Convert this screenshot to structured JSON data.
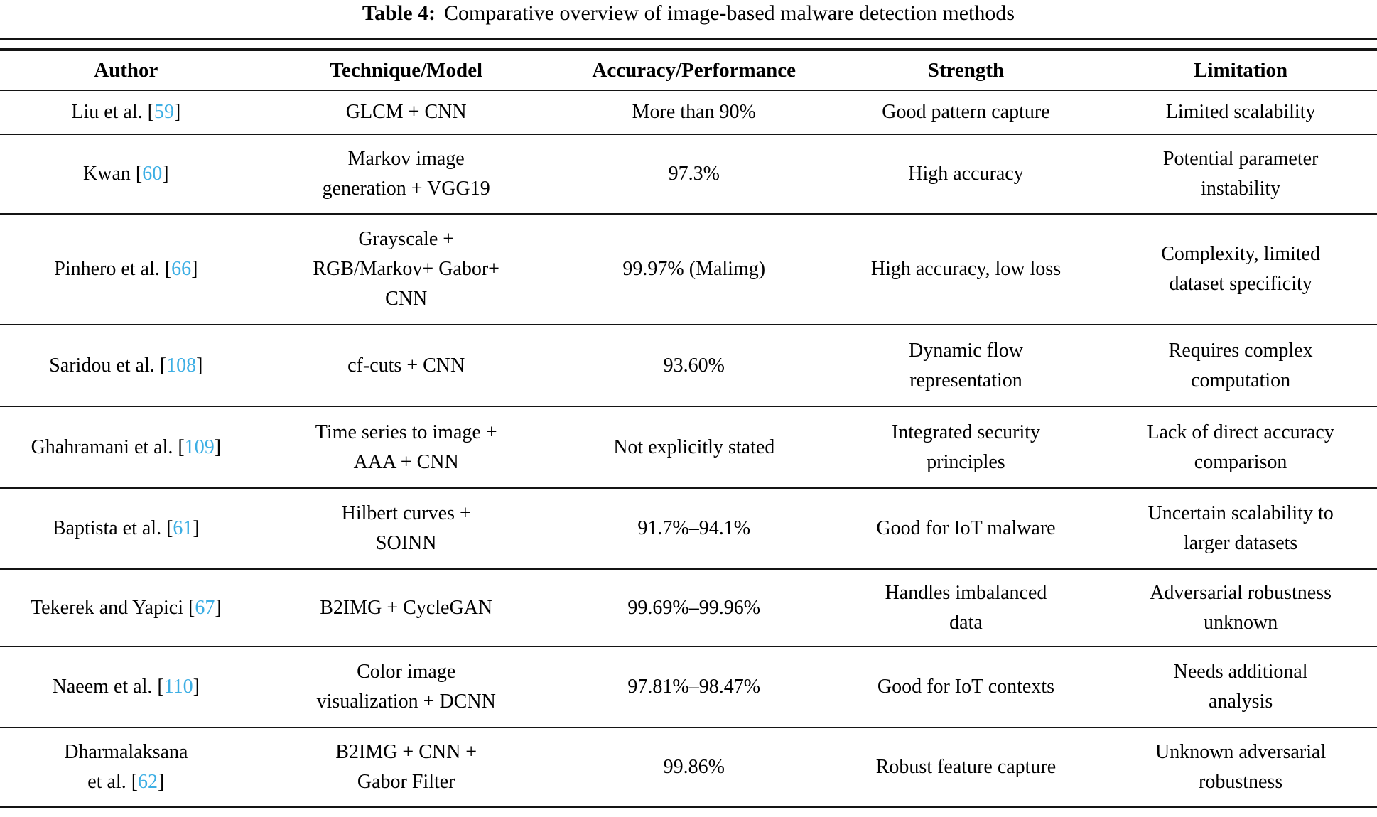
{
  "caption": {
    "label": "Table 4:",
    "text": "Comparative overview of image-based malware detection methods"
  },
  "colors": {
    "citation_blue": "#3caee4",
    "rule_black": "#141414",
    "text_black": "#000000"
  },
  "table": {
    "headers": [
      "Author",
      "Technique/Model",
      "Accuracy/Performance",
      "Strength",
      "Limitation"
    ],
    "rows": [
      {
        "author": "Liu et al. [59]",
        "technique": "GLCM + CNN",
        "accuracy": "More than 90%",
        "strength": "Good pattern capture",
        "limitation": "Limited scalability"
      },
      {
        "author": "Kwan [60]",
        "technique": "Markov image\ngeneration + VGG19",
        "accuracy": "97.3%",
        "strength": "High accuracy",
        "limitation": "Potential parameter\ninstability"
      },
      {
        "author": "Pinhero et al. [66]",
        "technique": "Grayscale +\nRGB/Markov+ Gabor+\nCNN",
        "accuracy": "99.97% (Malimg)",
        "strength": "High accuracy, low loss",
        "limitation": "Complexity, limited\ndataset specificity"
      },
      {
        "author": "Saridou et al. [108]",
        "technique": "cf-cuts + CNN",
        "accuracy": "93.60%",
        "strength": "Dynamic flow\nrepresentation",
        "limitation": "Requires complex\ncomputation"
      },
      {
        "author": "Ghahramani et al. [109]",
        "technique": "Time series to image +\nAAA + CNN",
        "accuracy": "Not explicitly stated",
        "strength": "Integrated security\nprinciples",
        "limitation": "Lack of direct accuracy\ncomparison"
      },
      {
        "author": "Baptista et al. [61]",
        "technique": "Hilbert curves +\nSOINN",
        "accuracy": "91.7%–94.1%",
        "strength": "Good for IoT malware",
        "limitation": "Uncertain scalability to\nlarger datasets"
      },
      {
        "author": "Tekerek and Yapici [67]",
        "technique": "B2IMG + CycleGAN",
        "accuracy": "99.69%–99.96%",
        "strength": "Handles imbalanced\ndata",
        "limitation": "Adversarial robustness\nunknown"
      },
      {
        "author": "Naeem et al. [110]",
        "technique": "Color image\nvisualization + DCNN",
        "accuracy": "97.81%–98.47%",
        "strength": "Good for IoT contexts",
        "limitation": "Needs additional\nanalysis"
      },
      {
        "author": "Dharmalaksana\net al. [62]",
        "technique": "B2IMG + CNN +\nGabor Filter",
        "accuracy": "99.86%",
        "strength": "Robust feature capture",
        "limitation": "Unknown adversarial\nrobustness"
      }
    ]
  }
}
